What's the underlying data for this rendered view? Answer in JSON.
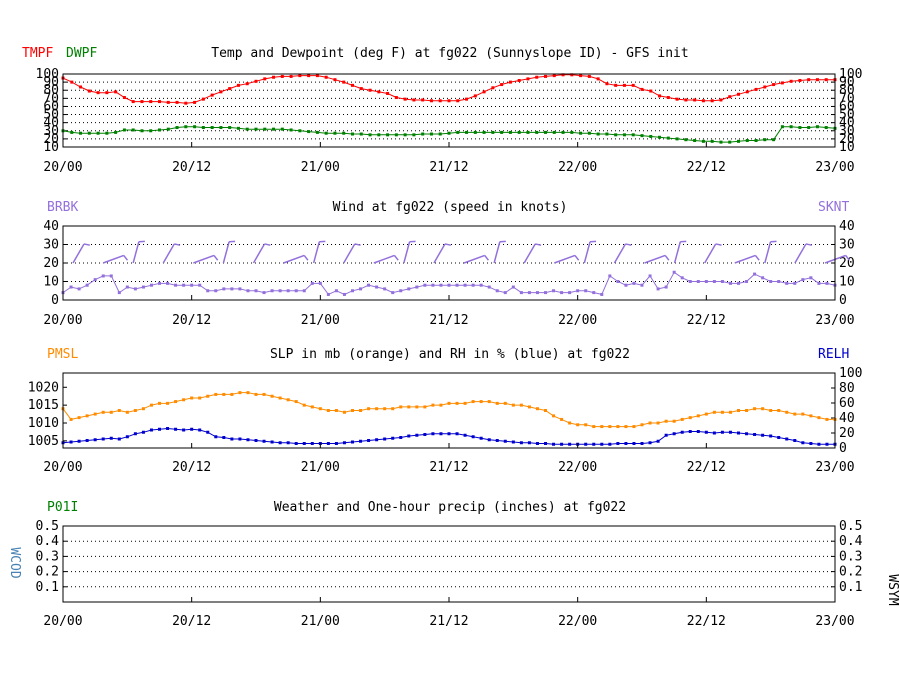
{
  "x_ticks": [
    "20/00",
    "20/12",
    "21/00",
    "21/12",
    "22/00",
    "22/12",
    "23/00"
  ],
  "colors": {
    "temp": "#ff0000",
    "dew": "#008000",
    "wind": "#9370db",
    "slp": "#ff8c00",
    "rh": "#0000cd",
    "precip": "#008000",
    "wcod": "#4682b4",
    "text": "#000000"
  },
  "chart_data": [
    {
      "type": "line",
      "title": "Temp and Dewpoint (deg F) at fg022 (Sunnyslope ID) - GFS init",
      "left_label_1": "TMPF",
      "left_label_2": "DWPF",
      "yticks": [
        "100",
        "90",
        "80",
        "70",
        "60",
        "50",
        "40",
        "30",
        "20",
        "10"
      ],
      "ylim": [
        10,
        100
      ],
      "grid": "horizontal-dotted",
      "series": [
        {
          "name": "TMPF",
          "values": [
            95,
            90,
            84,
            79,
            77,
            77,
            78,
            71,
            66,
            66,
            66,
            66,
            65,
            65,
            64,
            65,
            69,
            74,
            78,
            82,
            86,
            88,
            91,
            94,
            96,
            97,
            97,
            98,
            98,
            98,
            96,
            93,
            90,
            86,
            82,
            80,
            78,
            76,
            71,
            69,
            68,
            68,
            67,
            67,
            67,
            67,
            69,
            73,
            78,
            83,
            87,
            90,
            92,
            94,
            96,
            97,
            98,
            99,
            99,
            98,
            97,
            94,
            88,
            86,
            86,
            86,
            81,
            79,
            73,
            71,
            69,
            68,
            68,
            67,
            67,
            68,
            72,
            75,
            78,
            81,
            84,
            87,
            89,
            91,
            92,
            93,
            93,
            93,
            93
          ]
        },
        {
          "name": "DWPF",
          "values": [
            30,
            28,
            27,
            27,
            27,
            27,
            28,
            31,
            31,
            30,
            30,
            31,
            32,
            34,
            35,
            35,
            34,
            34,
            34,
            34,
            33,
            32,
            32,
            32,
            32,
            32,
            31,
            30,
            29,
            28,
            27,
            27,
            27,
            26,
            26,
            25,
            25,
            25,
            25,
            25,
            25,
            26,
            26,
            26,
            27,
            28,
            28,
            28,
            28,
            28,
            28,
            28,
            28,
            28,
            28,
            28,
            28,
            28,
            28,
            27,
            27,
            26,
            26,
            25,
            25,
            25,
            24,
            23,
            22,
            21,
            20,
            19,
            18,
            17,
            17,
            16,
            16,
            17,
            18,
            18,
            19,
            19,
            35,
            35,
            34,
            34,
            35,
            34,
            33
          ]
        }
      ]
    },
    {
      "type": "line",
      "title": "Wind at  fg022 (speed in knots)",
      "left_label": "BRBK",
      "right_label": "SKNT",
      "yticks": [
        "40",
        "30",
        "20",
        "10",
        "0"
      ],
      "ylim": [
        0,
        40
      ],
      "grid": "horizontal-dotted",
      "series": [
        {
          "name": "SKNT",
          "values": [
            4,
            7,
            6,
            8,
            11,
            13,
            13,
            4,
            7,
            6,
            7,
            8,
            9,
            9,
            8,
            8,
            8,
            8,
            5,
            5,
            6,
            6,
            6,
            5,
            5,
            4,
            5,
            5,
            5,
            5,
            5,
            9,
            9,
            3,
            5,
            3,
            5,
            6,
            8,
            7,
            6,
            4,
            5,
            6,
            7,
            8,
            8,
            8,
            8,
            8,
            8,
            8,
            8,
            7,
            5,
            4,
            7,
            4,
            4,
            4,
            4,
            5,
            4,
            4,
            5,
            5,
            4,
            3,
            13,
            10,
            8,
            9,
            8,
            13,
            6,
            7,
            15,
            12,
            10,
            10,
            10,
            10,
            10,
            9,
            9,
            10,
            14,
            12,
            10,
            10,
            9,
            9,
            11,
            12,
            9,
            9,
            8
          ]
        }
      ],
      "barb_count": 26
    },
    {
      "type": "line",
      "title": "SLP in mb (orange) and RH in % (blue) at  fg022",
      "left_label": "PMSL",
      "right_label": "RELH",
      "yticks_left": [
        "1020",
        "1015",
        "1010",
        "1005"
      ],
      "yticks_right": [
        "100",
        "80",
        "60",
        "40",
        "20",
        "0"
      ],
      "ylim_left": [
        1003,
        1024
      ],
      "ylim_right": [
        0,
        100
      ],
      "series": [
        {
          "name": "PMSL",
          "axis": "left",
          "values": [
            1014,
            1011,
            1011.5,
            1012,
            1012.5,
            1013,
            1013,
            1013.5,
            1013,
            1013.5,
            1014,
            1015,
            1015.5,
            1015.5,
            1016,
            1016.5,
            1017,
            1017,
            1017.5,
            1018,
            1018,
            1018,
            1018.5,
            1018.5,
            1018,
            1018,
            1017.5,
            1017,
            1016.5,
            1016,
            1015,
            1014.5,
            1014,
            1013.5,
            1013.5,
            1013,
            1013.5,
            1013.5,
            1014,
            1014,
            1014,
            1014,
            1014.5,
            1014.5,
            1014.5,
            1014.5,
            1015,
            1015,
            1015.5,
            1015.5,
            1015.5,
            1016,
            1016,
            1016,
            1015.5,
            1015.5,
            1015,
            1015,
            1014.5,
            1014,
            1013.5,
            1012,
            1011,
            1010,
            1009.5,
            1009.5,
            1009,
            1009,
            1009,
            1009,
            1009,
            1009,
            1009.5,
            1010,
            1010,
            1010.5,
            1010.5,
            1011,
            1011.5,
            1012,
            1012.5,
            1013,
            1013,
            1013,
            1013.5,
            1013.5,
            1014,
            1014,
            1013.5,
            1013.5,
            1013,
            1012.5,
            1012.5,
            1012,
            1011.5,
            1011,
            1011
          ]
        },
        {
          "name": "RELH",
          "axis": "right",
          "values": [
            7,
            8,
            9,
            10,
            11,
            12,
            13,
            12,
            15,
            19,
            21,
            24,
            25,
            26,
            25,
            24,
            25,
            24,
            21,
            15,
            14,
            12,
            12,
            11,
            10,
            9,
            8,
            7,
            7,
            6,
            6,
            6,
            6,
            6,
            6,
            7,
            8,
            9,
            10,
            11,
            12,
            13,
            14,
            16,
            17,
            18,
            19,
            19,
            19,
            19,
            17,
            15,
            13,
            11,
            10,
            9,
            8,
            7,
            7,
            6,
            6,
            5,
            5,
            5,
            5,
            5,
            5,
            5,
            5,
            6,
            6,
            6,
            6,
            7,
            9,
            17,
            19,
            21,
            22,
            22,
            21,
            20,
            21,
            21,
            20,
            19,
            18,
            17,
            16,
            14,
            12,
            10,
            7,
            6,
            5,
            5,
            5
          ]
        }
      ]
    },
    {
      "type": "line",
      "title": "Weather and One-hour precip (inches) at  fg022",
      "left_label": "P01I",
      "left_side_label": "WCOD",
      "right_side_label": "WSYM",
      "yticks": [
        "0.5",
        "0.4",
        "0.3",
        "0.2",
        "0.1"
      ],
      "ylim": [
        0,
        0.5
      ],
      "series": []
    }
  ]
}
